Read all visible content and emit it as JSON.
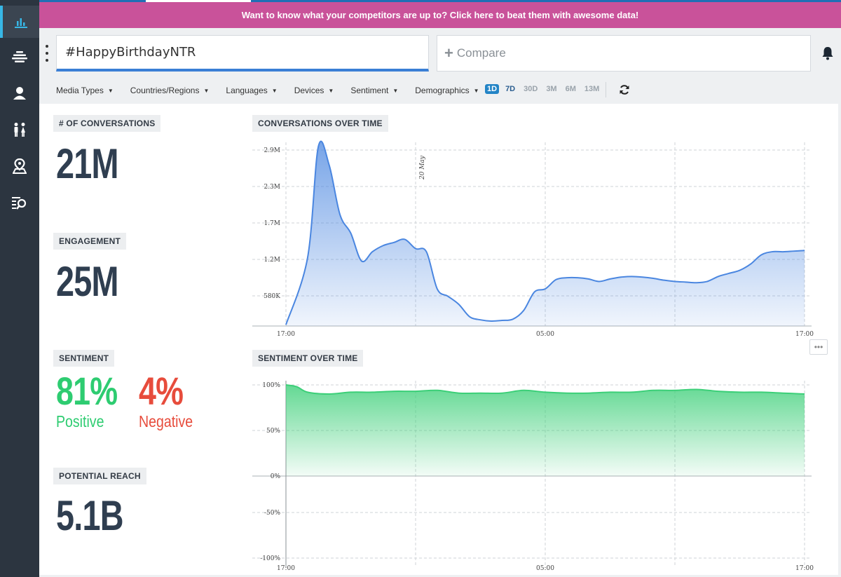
{
  "sidebar": {
    "items": [
      {
        "icon": "bar-chart-icon",
        "active": true
      },
      {
        "icon": "stream-icon",
        "active": false
      },
      {
        "icon": "user-icon",
        "active": false
      },
      {
        "icon": "people-icon",
        "active": false
      },
      {
        "icon": "location-icon",
        "active": false
      },
      {
        "icon": "list-search-icon",
        "active": false
      }
    ]
  },
  "banner": {
    "text": "Want to know what your competitors are up to? Click here to beat them with awesome data!",
    "color": "#c9529a"
  },
  "search": {
    "value": "#HappyBirthdayNTR"
  },
  "compare": {
    "placeholder": "Compare"
  },
  "filters": [
    "Media Types",
    "Countries/Regions",
    "Languages",
    "Devices",
    "Sentiment",
    "Demographics"
  ],
  "ranges": [
    "1D",
    "7D",
    "30D",
    "3M",
    "6M",
    "13M"
  ],
  "active_range": "1D",
  "metrics": {
    "conversations": {
      "label": "# OF CONVERSATIONS",
      "value": "21M"
    },
    "engagement": {
      "label": "ENGAGEMENT",
      "value": "25M"
    },
    "sentiment": {
      "label": "SENTIMENT",
      "positive_value": "81%",
      "positive_label": "Positive",
      "negative_value": "4%",
      "negative_label": "Negative"
    },
    "reach": {
      "label": "POTENTIAL REACH",
      "value": "5.1B"
    }
  },
  "colors": {
    "positive": "#2ecc71",
    "negative": "#e74c3c",
    "line_blue": "#4a86e0",
    "line_green": "#3ccf78"
  },
  "chart_data": [
    {
      "type": "area",
      "title": "CONVERSATIONS OVER TIME",
      "y_ticks": [
        "580K",
        "1.2M",
        "1.7M",
        "2.3M",
        "2.9M"
      ],
      "x_ticks": [
        "17:00",
        "05:00",
        "17:00"
      ],
      "annotation": "20 May",
      "x": [
        0,
        1,
        1.5,
        2,
        2.5,
        3,
        3.5,
        4,
        4.5,
        5,
        5.5,
        6,
        6.5,
        7,
        7.5,
        8,
        8.5,
        9,
        9.5,
        10,
        10.5,
        11,
        11.5,
        12,
        12.5,
        13,
        13.5,
        14,
        14.5,
        15,
        15.5,
        16,
        16.5,
        17,
        17.5,
        18,
        18.5,
        19,
        19.5,
        20,
        20.5,
        21,
        21.5,
        22,
        22.5,
        23,
        23.5,
        24
      ],
      "values": [
        20000,
        1100000,
        2900000,
        2600000,
        1800000,
        1500000,
        1050000,
        1200000,
        1300000,
        1350000,
        1400000,
        1250000,
        1200000,
        600000,
        480000,
        350000,
        150000,
        100000,
        80000,
        90000,
        110000,
        250000,
        550000,
        600000,
        750000,
        780000,
        780000,
        760000,
        720000,
        760000,
        790000,
        800000,
        790000,
        770000,
        740000,
        720000,
        710000,
        700000,
        720000,
        800000,
        850000,
        900000,
        1000000,
        1150000,
        1200000,
        1200000,
        1210000,
        1220000
      ],
      "ylim": [
        0,
        2900000
      ]
    },
    {
      "type": "area",
      "title": "SENTIMENT OVER TIME",
      "y_ticks": [
        "-100%",
        "-50%",
        "0%",
        "50%",
        "100%"
      ],
      "x_ticks": [
        "17:00",
        "05:00",
        "17:00"
      ],
      "x": [
        0,
        0.5,
        1,
        2,
        3,
        4,
        5,
        6,
        7,
        8,
        9,
        10,
        11,
        12,
        13,
        14,
        15,
        16,
        17,
        18,
        19,
        20,
        21,
        22,
        23,
        24
      ],
      "values": [
        100,
        98,
        92,
        90,
        92,
        92,
        93,
        93,
        94,
        91,
        91,
        91,
        94,
        92,
        91,
        91,
        92,
        92,
        94,
        94,
        95,
        93,
        92,
        92,
        91,
        90
      ],
      "ylim": [
        -100,
        100
      ]
    }
  ]
}
